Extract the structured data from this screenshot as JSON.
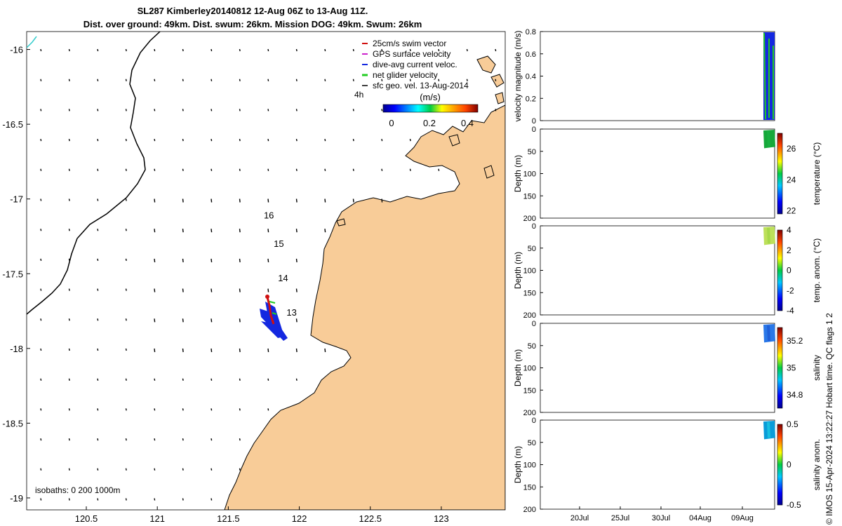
{
  "title_line1": "SL287 Kimberley20140812 12-Aug 06Z to 13-Aug 11Z.",
  "title_line2": "Dist. over ground: 49km. Dist. swum: 26km. Mission DOG: 49km. Swum: 26km",
  "footer": "© IMOS 15-Apr-2024 13:22:27 Hobart time. QC flags 1  2",
  "colors": {
    "land": "#f8cc98",
    "glider_track": "#1428e0",
    "swim": "#d01010",
    "net": "#22cc22",
    "gps": "#cc22cc",
    "coast_line": "#000000",
    "cyan_line": "#33cccc"
  },
  "chart_data": [
    {
      "type": "map",
      "x_ticks": [
        "120.5",
        "121",
        "121.5",
        "122",
        "122.5",
        "123"
      ],
      "x_tick_values": [
        120.5,
        121,
        121.5,
        122,
        122.5,
        123
      ],
      "y_ticks": [
        "-16",
        "-16.5",
        "-17",
        "-17.5",
        "-18",
        "-18.5",
        "-19"
      ],
      "y_tick_values": [
        -16,
        -16.5,
        -17,
        -17.5,
        -18,
        -18.5,
        -19
      ],
      "xlim": [
        120.08,
        123.45
      ],
      "ylim": [
        -19.08,
        -15.88
      ],
      "legend": {
        "placement": "top-right",
        "entries": [
          {
            "label": "25cm/s swim vector",
            "color": "#d01010"
          },
          {
            "label": "GPS surface velocity",
            "color": "#cc22cc"
          },
          {
            "label": "dive-avg current veloc.",
            "color": "#1428e0"
          },
          {
            "label": "net glider velocity",
            "color": "#22cc22"
          },
          {
            "label": "sfc geo. vel. 13-Aug-2014",
            "color": "#000000"
          }
        ]
      },
      "colorbar": {
        "label": "(m/s)",
        "ticks": [
          "0",
          "0.2",
          "0.4"
        ],
        "range": [
          0,
          0.5
        ]
      },
      "hour_label": "4h",
      "track_labels": [
        {
          "text": "16",
          "lon": 121.75,
          "lat": -17.13
        },
        {
          "text": "15",
          "lon": 121.82,
          "lat": -17.32
        },
        {
          "text": "14",
          "lon": 121.85,
          "lat": -17.55
        },
        {
          "text": "13",
          "lon": 121.91,
          "lat": -17.78
        }
      ],
      "isobaths_label": "isobaths: 0   200  1000m"
    },
    {
      "type": "line",
      "ylabel": "velocity magnitude (m/s)",
      "ylim": [
        0,
        0.8
      ],
      "y_ticks": [
        "0",
        "0.2",
        "0.4",
        "0.6",
        "0.8"
      ],
      "y_tick_values": [
        0,
        0.2,
        0.4,
        0.6,
        0.8
      ]
    },
    {
      "type": "heatmap",
      "ylabel": "Depth (m)",
      "ylim": [
        200,
        0
      ],
      "y_ticks": [
        "0",
        "50",
        "100",
        "150",
        "200"
      ],
      "colorbar": {
        "label": "temperature (°C)",
        "ticks": [
          "22",
          "24",
          "26"
        ],
        "range": [
          21.8,
          27
        ]
      }
    },
    {
      "type": "heatmap",
      "ylabel": "Depth (m)",
      "ylim": [
        200,
        0
      ],
      "y_ticks": [
        "0",
        "50",
        "100",
        "150",
        "200"
      ],
      "colorbar": {
        "label": "temp. anom. (°C)",
        "ticks": [
          "4",
          "2",
          "0",
          "-2",
          "-4"
        ],
        "range": [
          -4,
          4
        ]
      }
    },
    {
      "type": "heatmap",
      "ylabel": "Depth (m)",
      "ylim": [
        200,
        0
      ],
      "y_ticks": [
        "0",
        "50",
        "100",
        "150",
        "200"
      ],
      "colorbar": {
        "label": "salinity",
        "ticks": [
          "35.2",
          "35",
          "34.8"
        ],
        "range": [
          34.7,
          35.3
        ]
      }
    },
    {
      "type": "heatmap",
      "ylabel": "Depth (m)",
      "ylim": [
        200,
        0
      ],
      "y_ticks": [
        "0",
        "50",
        "100",
        "150",
        "200"
      ],
      "x_ticks": [
        "20Jul",
        "25Jul",
        "30Jul",
        "04Aug",
        "09Aug"
      ],
      "colorbar": {
        "label": "salinity anom.",
        "ticks": [
          "0.5",
          "0",
          "-0.5"
        ],
        "range": [
          -0.5,
          0.5
        ]
      }
    }
  ]
}
